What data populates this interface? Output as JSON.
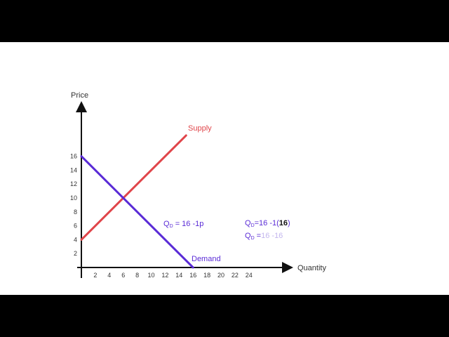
{
  "chart_data": {
    "type": "line",
    "xlabel": "Quantity",
    "ylabel": "Price",
    "xlim": [
      0,
      26
    ],
    "ylim": [
      0,
      21
    ],
    "x_ticks": [
      2,
      4,
      6,
      8,
      10,
      12,
      14,
      16,
      18,
      20,
      22,
      24
    ],
    "y_ticks": [
      2,
      4,
      6,
      8,
      10,
      12,
      14,
      16
    ],
    "series": [
      {
        "name": "Supply",
        "color": "#e0454a",
        "x": [
          0,
          15
        ],
        "y": [
          4,
          19
        ]
      },
      {
        "name": "Demand",
        "color": "#5a2bd6",
        "x": [
          0,
          16
        ],
        "y": [
          16,
          0
        ]
      }
    ],
    "annotations": {
      "eq1": {
        "q": "Q",
        "sub": "D",
        "rest": "=  16 -1p",
        "color": "#5a2bd6"
      },
      "eq2": {
        "q": "Q",
        "sub": "D",
        "rest": "=16 -1(",
        "bold": "16",
        "close": ")",
        "color": "#5a2bd6"
      },
      "eq3": {
        "q": "Q",
        "sub": "D",
        "rest_a": " =",
        "rest_b": "16 -16",
        "color": "#5a2bd6",
        "fade": "#c3b6ee"
      }
    }
  }
}
